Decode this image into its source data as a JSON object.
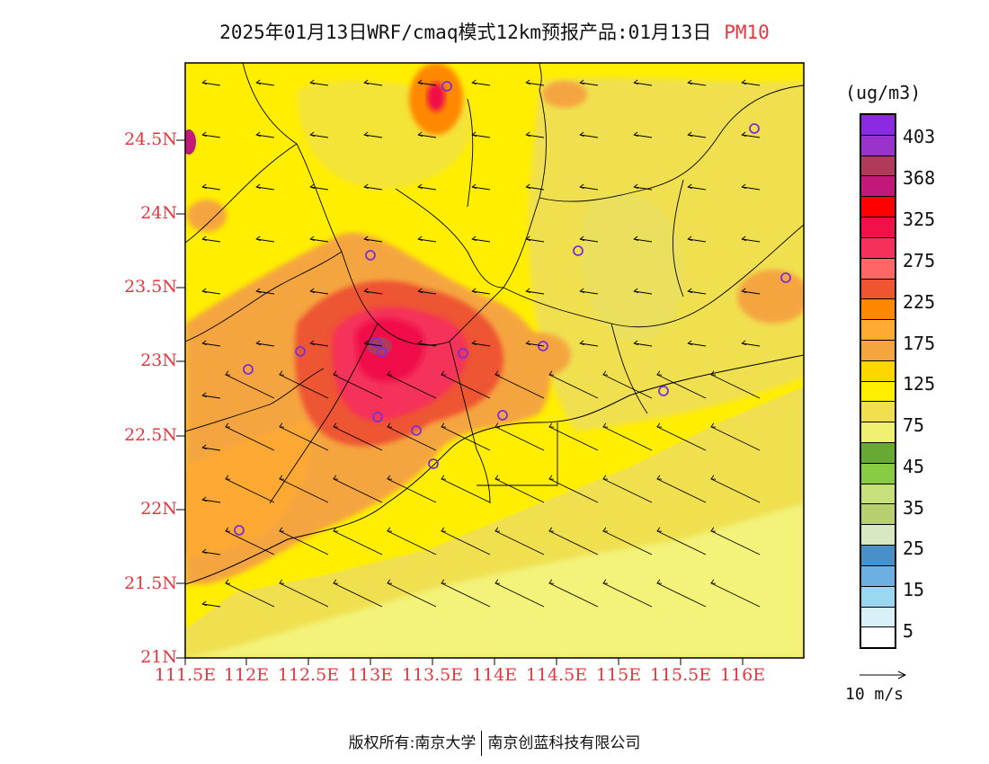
{
  "title": {
    "main": "2025年01月13日WRF/cmaq模式12km预报产品:01月13日",
    "variable": "PM10"
  },
  "axes": {
    "lat_labels": [
      "24.5N",
      "24N",
      "23.5N",
      "23N",
      "22.5N",
      "22N",
      "21.5N",
      "21N"
    ],
    "lon_labels": [
      "111.5E",
      "112E",
      "112.5E",
      "113E",
      "113.5E",
      "114E",
      "114.5E",
      "115E",
      "115.5E",
      "116E"
    ]
  },
  "legend": {
    "unit": "(ug/m3)",
    "labels": [
      "403",
      "368",
      "325",
      "275",
      "225",
      "175",
      "125",
      "75",
      "45",
      "35",
      "25",
      "15",
      "5"
    ],
    "colors_top_to_bottom": [
      "#8a2be2",
      "#9933cc",
      "#b03a5a",
      "#c2187a",
      "#ff0000",
      "#f0104a",
      "#f5305a",
      "#ff6666",
      "#ee5530",
      "#ff8800",
      "#ffaa33",
      "#f5a540",
      "#ffd700",
      "#ffee00",
      "#f0e050",
      "#eef070",
      "#66aa33",
      "#88cc44",
      "#c8e07a",
      "#b8d070",
      "#d8e8c0",
      "#4a90c8",
      "#6ab0e0",
      "#9ad8f0",
      "#d8f0f8",
      "#ffffff"
    ]
  },
  "wind_reference": {
    "label": "10 m/s"
  },
  "footer": {
    "left": "版权所有:南京大学",
    "right": "南京创蓝科技有限公司"
  }
}
